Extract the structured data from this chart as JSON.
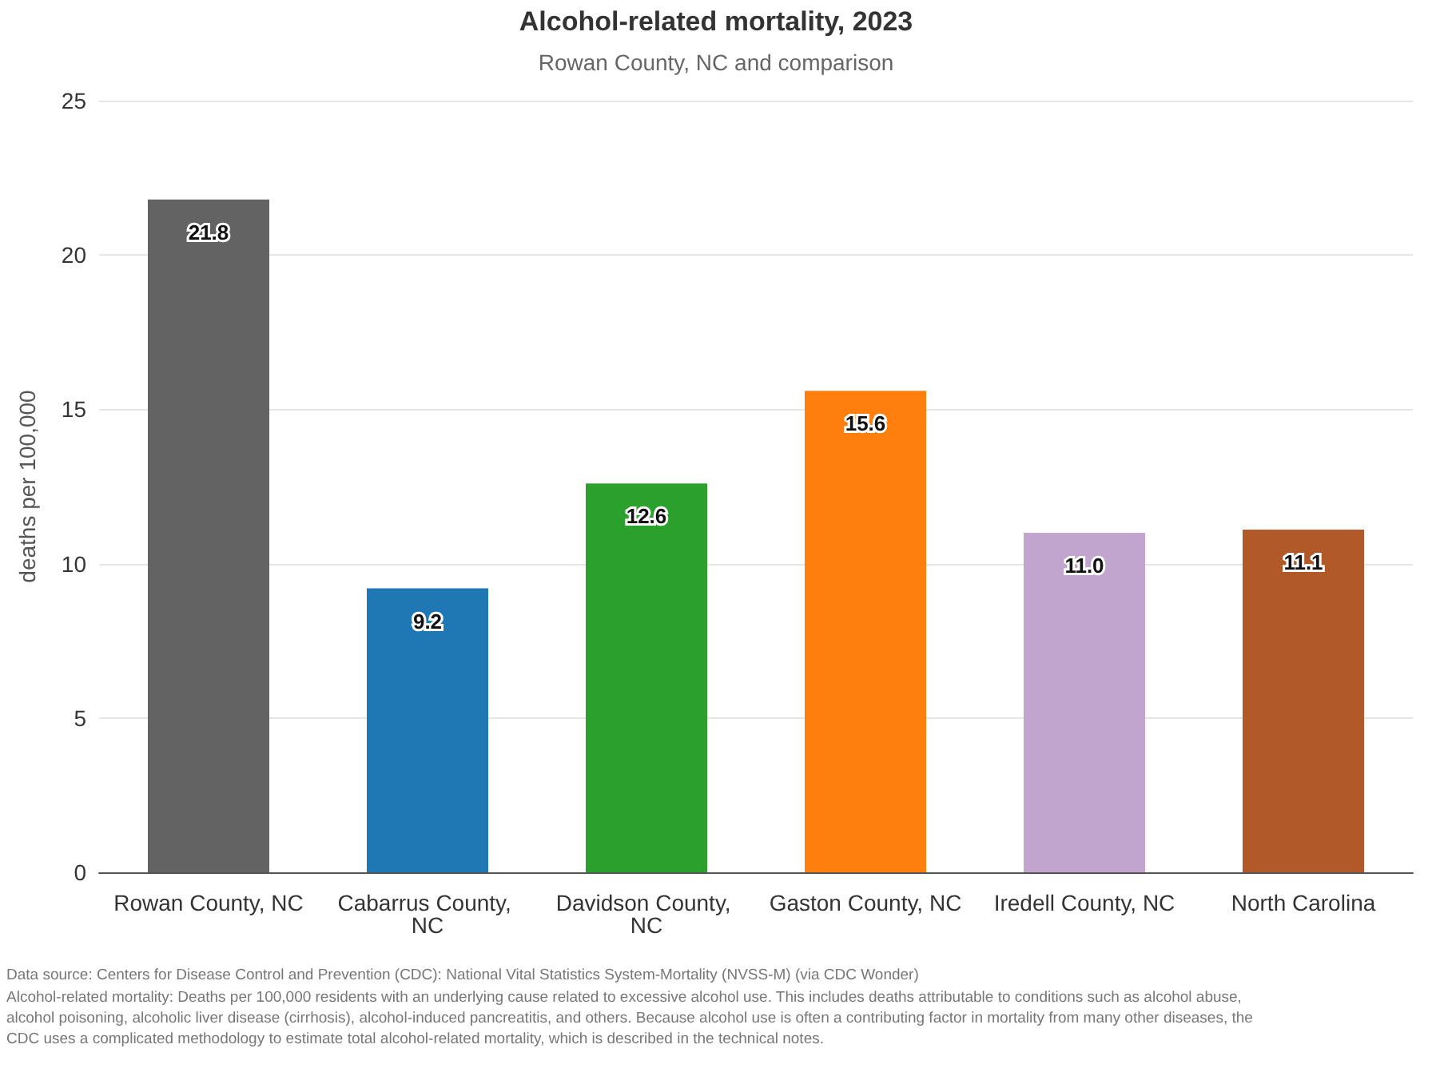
{
  "chart_data": {
    "type": "bar",
    "title": "Alcohol-related mortality, 2023",
    "subtitle": "Rowan County, NC and comparison",
    "ylabel": "deaths per 100,000",
    "categories": [
      "Rowan County, NC",
      "Cabarrus County, NC",
      "Davidson County, NC",
      "Gaston County, NC",
      "Iredell County, NC",
      "North Carolina"
    ],
    "values": [
      21.8,
      9.2,
      12.6,
      15.6,
      11.0,
      11.1
    ],
    "colors": [
      "#636363",
      "#1f77b4",
      "#2ca02c",
      "#ff7f0e",
      "#c2a5cf",
      "#b15928"
    ],
    "value_labels": [
      "21.8",
      "9.2",
      "12.6",
      "15.6",
      "11.0",
      "11.1"
    ],
    "ylim": [
      0,
      25
    ],
    "yticks": [
      0,
      5,
      10,
      15,
      20,
      25
    ],
    "grid": "y",
    "annotations": [
      "Data source: Centers for Disease Control and Prevention (CDC): National Vital Statistics System-Mortality (NVSS-M) (via CDC Wonder)",
      "Alcohol-related mortality: Deaths per 100,000 residents with an underlying cause related to excessive alcohol use. This includes deaths attributable to conditions such as alcohol abuse, alcohol poisoning, alcoholic liver disease (cirrhosis), alcohol-induced pancreatitis, and others. Because alcohol use is often a contributing factor in mortality from many other diseases, the CDC uses a complicated methodology to estimate total alcohol-related mortality, which is described in the technical notes."
    ]
  }
}
